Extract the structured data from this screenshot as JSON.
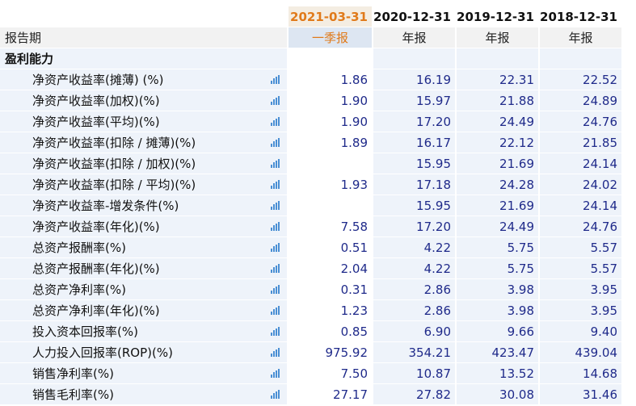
{
  "header": {
    "dates": [
      "2021-03-31",
      "2020-12-31",
      "2019-12-31",
      "2018-12-31"
    ],
    "report_period_label": "报告期",
    "report_types": [
      "一季报",
      "年报",
      "年报",
      "年报"
    ]
  },
  "section": {
    "title": "盈利能力"
  },
  "chart_icon": "bar-chart-icon",
  "colors": {
    "highlight": "#e07a1a",
    "value_text": "#1f2a8a",
    "row_bg": "#eef3fa",
    "icon": "#4a8fd4"
  },
  "rows": [
    {
      "name": "净资产收益率(摊薄) (%)",
      "values": [
        "1.86",
        "16.19",
        "22.31",
        "22.52"
      ]
    },
    {
      "name": "净资产收益率(加权)(%)",
      "values": [
        "1.90",
        "15.97",
        "21.88",
        "24.89"
      ]
    },
    {
      "name": "净资产收益率(平均)(%)",
      "values": [
        "1.90",
        "17.20",
        "24.49",
        "24.76"
      ]
    },
    {
      "name": "净资产收益率(扣除 / 摊薄)(%)",
      "values": [
        "1.89",
        "16.17",
        "22.12",
        "21.85"
      ]
    },
    {
      "name": "净资产收益率(扣除 / 加权)(%)",
      "values": [
        "",
        "15.95",
        "21.69",
        "24.14"
      ]
    },
    {
      "name": "净资产收益率(扣除 / 平均)(%)",
      "values": [
        "1.93",
        "17.18",
        "24.28",
        "24.02"
      ]
    },
    {
      "name": "净资产收益率-增发条件(%)",
      "values": [
        "",
        "15.95",
        "21.69",
        "24.14"
      ]
    },
    {
      "name": "净资产收益率(年化)(%)",
      "values": [
        "7.58",
        "17.20",
        "24.49",
        "24.76"
      ]
    },
    {
      "name": "总资产报酬率(%)",
      "values": [
        "0.51",
        "4.22",
        "5.75",
        "5.57"
      ]
    },
    {
      "name": "总资产报酬率(年化)(%)",
      "values": [
        "2.04",
        "4.22",
        "5.75",
        "5.57"
      ]
    },
    {
      "name": "总资产净利率(%)",
      "values": [
        "0.31",
        "2.86",
        "3.98",
        "3.95"
      ]
    },
    {
      "name": "总资产净利率(年化)(%)",
      "values": [
        "1.23",
        "2.86",
        "3.98",
        "3.95"
      ]
    },
    {
      "name": "投入资本回报率(%)",
      "values": [
        "0.85",
        "6.90",
        "9.66",
        "9.40"
      ]
    },
    {
      "name": "人力投入回报率(ROP)(%)",
      "values": [
        "975.92",
        "354.21",
        "423.47",
        "439.04"
      ]
    },
    {
      "name": "销售净利率(%)",
      "values": [
        "7.50",
        "10.87",
        "13.52",
        "14.68"
      ]
    },
    {
      "name": "销售毛利率(%)",
      "values": [
        "27.17",
        "27.82",
        "30.08",
        "31.46"
      ]
    }
  ]
}
